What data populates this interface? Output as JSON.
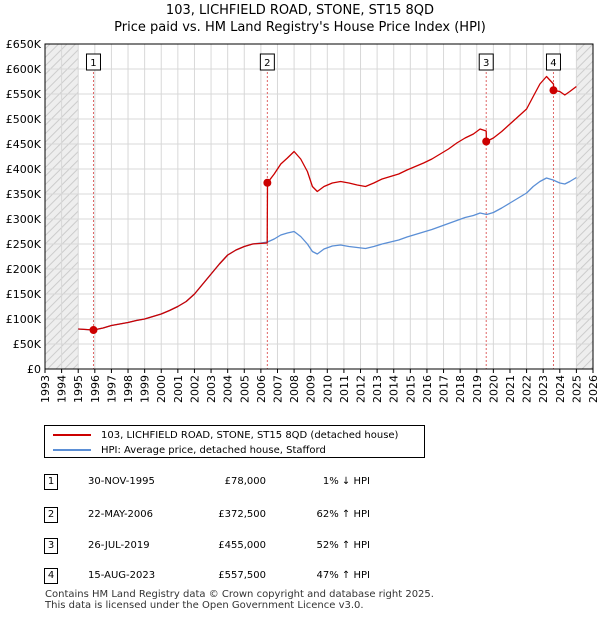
{
  "chart_data": {
    "type": "line",
    "title": "103, LICHFIELD ROAD, STONE, ST15 8QD",
    "subtitle": "Price paid vs. HM Land Registry's House Price Index (HPI)",
    "xlim": [
      1993,
      2026
    ],
    "ylim": [
      0,
      650000
    ],
    "x_ticks": [
      1993,
      1994,
      1995,
      1996,
      1997,
      1998,
      1999,
      2000,
      2001,
      2002,
      2003,
      2004,
      2005,
      2006,
      2007,
      2008,
      2009,
      2010,
      2011,
      2012,
      2013,
      2014,
      2015,
      2016,
      2017,
      2018,
      2019,
      2020,
      2021,
      2022,
      2023,
      2024,
      2025,
      2026
    ],
    "y_ticks": [
      {
        "value": 0,
        "label": "£0"
      },
      {
        "value": 50000,
        "label": "£50K"
      },
      {
        "value": 100000,
        "label": "£100K"
      },
      {
        "value": 150000,
        "label": "£150K"
      },
      {
        "value": 200000,
        "label": "£200K"
      },
      {
        "value": 250000,
        "label": "£250K"
      },
      {
        "value": 300000,
        "label": "£300K"
      },
      {
        "value": 350000,
        "label": "£350K"
      },
      {
        "value": 400000,
        "label": "£400K"
      },
      {
        "value": 450000,
        "label": "£450K"
      },
      {
        "value": 500000,
        "label": "£500K"
      },
      {
        "value": 550000,
        "label": "£550K"
      },
      {
        "value": 600000,
        "label": "£600K"
      },
      {
        "value": 650000,
        "label": "£650K"
      }
    ],
    "hatched_ranges": [
      [
        1993,
        1995.0
      ],
      [
        2025.0,
        2026
      ]
    ],
    "series": [
      {
        "name": "103, LICHFIELD ROAD, STONE, ST15 8QD (detached house)",
        "color": "#cc0000",
        "x": [
          1995.0,
          1995.92,
          1996.5,
          1997,
          1997.5,
          1998,
          1998.5,
          1999,
          1999.5,
          2000,
          2000.5,
          2001,
          2001.5,
          2002,
          2002.5,
          2003,
          2003.5,
          2004,
          2004.5,
          2005,
          2005.5,
          2006.38,
          2006.4,
          2006.8,
          2007.2,
          2007.6,
          2008,
          2008.4,
          2008.8,
          2009.1,
          2009.4,
          2009.8,
          2010.3,
          2010.8,
          2011.3,
          2011.8,
          2012.3,
          2012.8,
          2013.3,
          2013.8,
          2014.3,
          2014.8,
          2015.3,
          2015.8,
          2016.3,
          2016.8,
          2017.3,
          2017.8,
          2018.3,
          2018.8,
          2019.2,
          2019.57,
          2019.58,
          2020,
          2020.5,
          2021,
          2021.5,
          2022,
          2022.4,
          2022.8,
          2023.2,
          2023.62,
          2023.63,
          2024,
          2024.3,
          2024.6,
          2025.0
        ],
        "y": [
          80000,
          78000,
          82000,
          87000,
          90000,
          93000,
          97000,
          100000,
          105000,
          110000,
          117000,
          125000,
          135000,
          150000,
          170000,
          190000,
          210000,
          228000,
          238000,
          245000,
          250000,
          252000,
          372500,
          390000,
          410000,
          422000,
          435000,
          420000,
          395000,
          365000,
          355000,
          365000,
          372000,
          375000,
          372000,
          368000,
          365000,
          372000,
          380000,
          385000,
          390000,
          398000,
          405000,
          412000,
          420000,
          430000,
          440000,
          452000,
          462000,
          470000,
          480000,
          476000,
          455000,
          462000,
          475000,
          490000,
          505000,
          520000,
          545000,
          570000,
          585000,
          570000,
          557500,
          555000,
          548000,
          555000,
          565000
        ]
      },
      {
        "name": "HPI: Average price, detached house, Stafford",
        "color": "#5b8fd6",
        "x": [
          1995.0,
          1995.92,
          1996.5,
          1997,
          1997.5,
          1998,
          1998.5,
          1999,
          1999.5,
          2000,
          2000.5,
          2001,
          2001.5,
          2002,
          2002.5,
          2003,
          2003.5,
          2004,
          2004.5,
          2005,
          2005.5,
          2006,
          2006.4,
          2006.8,
          2007.2,
          2007.6,
          2008,
          2008.4,
          2008.8,
          2009.1,
          2009.4,
          2009.8,
          2010.3,
          2010.8,
          2011.3,
          2011.8,
          2012.3,
          2012.8,
          2013.3,
          2013.8,
          2014.3,
          2014.8,
          2015.3,
          2015.8,
          2016.3,
          2016.8,
          2017.3,
          2017.8,
          2018.3,
          2018.8,
          2019.2,
          2019.6,
          2020,
          2020.5,
          2021,
          2021.5,
          2022,
          2022.4,
          2022.8,
          2023.2,
          2023.6,
          2024,
          2024.3,
          2024.6,
          2025.0
        ],
        "y": [
          80000,
          78000,
          82000,
          87000,
          90000,
          93000,
          97000,
          100000,
          105000,
          110000,
          117000,
          125000,
          135000,
          150000,
          170000,
          190000,
          210000,
          228000,
          238000,
          245000,
          250000,
          252000,
          254000,
          260000,
          268000,
          272000,
          275000,
          265000,
          250000,
          235000,
          230000,
          240000,
          246000,
          248000,
          245000,
          243000,
          241000,
          245000,
          250000,
          254000,
          258000,
          264000,
          269000,
          274000,
          279000,
          285000,
          291000,
          297000,
          303000,
          307000,
          312000,
          309000,
          313000,
          322000,
          332000,
          342000,
          352000,
          365000,
          375000,
          382000,
          378000,
          372000,
          370000,
          375000,
          383000
        ]
      }
    ],
    "sales": [
      {
        "label": "1",
        "x": 1995.92,
        "y": 78000
      },
      {
        "label": "2",
        "x": 2006.39,
        "y": 372500
      },
      {
        "label": "3",
        "x": 2019.57,
        "y": 455000
      },
      {
        "label": "4",
        "x": 2023.62,
        "y": 557500
      }
    ],
    "legend": [
      {
        "label": "103, LICHFIELD ROAD, STONE, ST15 8QD (detached house)",
        "color": "#cc0000"
      },
      {
        "label": "HPI: Average price, detached house, Stafford",
        "color": "#5b8fd6"
      }
    ]
  },
  "transactions": [
    {
      "num": "1",
      "date": "30-NOV-1995",
      "price": "£78,000",
      "hpi": "1% ↓ HPI"
    },
    {
      "num": "2",
      "date": "22-MAY-2006",
      "price": "£372,500",
      "hpi": "62% ↑ HPI"
    },
    {
      "num": "3",
      "date": "26-JUL-2019",
      "price": "£455,000",
      "hpi": "52% ↑ HPI"
    },
    {
      "num": "4",
      "date": "15-AUG-2023",
      "price": "£557,500",
      "hpi": "47% ↑ HPI"
    }
  ],
  "footer": {
    "line1": "Contains HM Land Registry data © Crown copyright and database right 2025.",
    "line2": "This data is licensed under the Open Government Licence v3.0."
  }
}
